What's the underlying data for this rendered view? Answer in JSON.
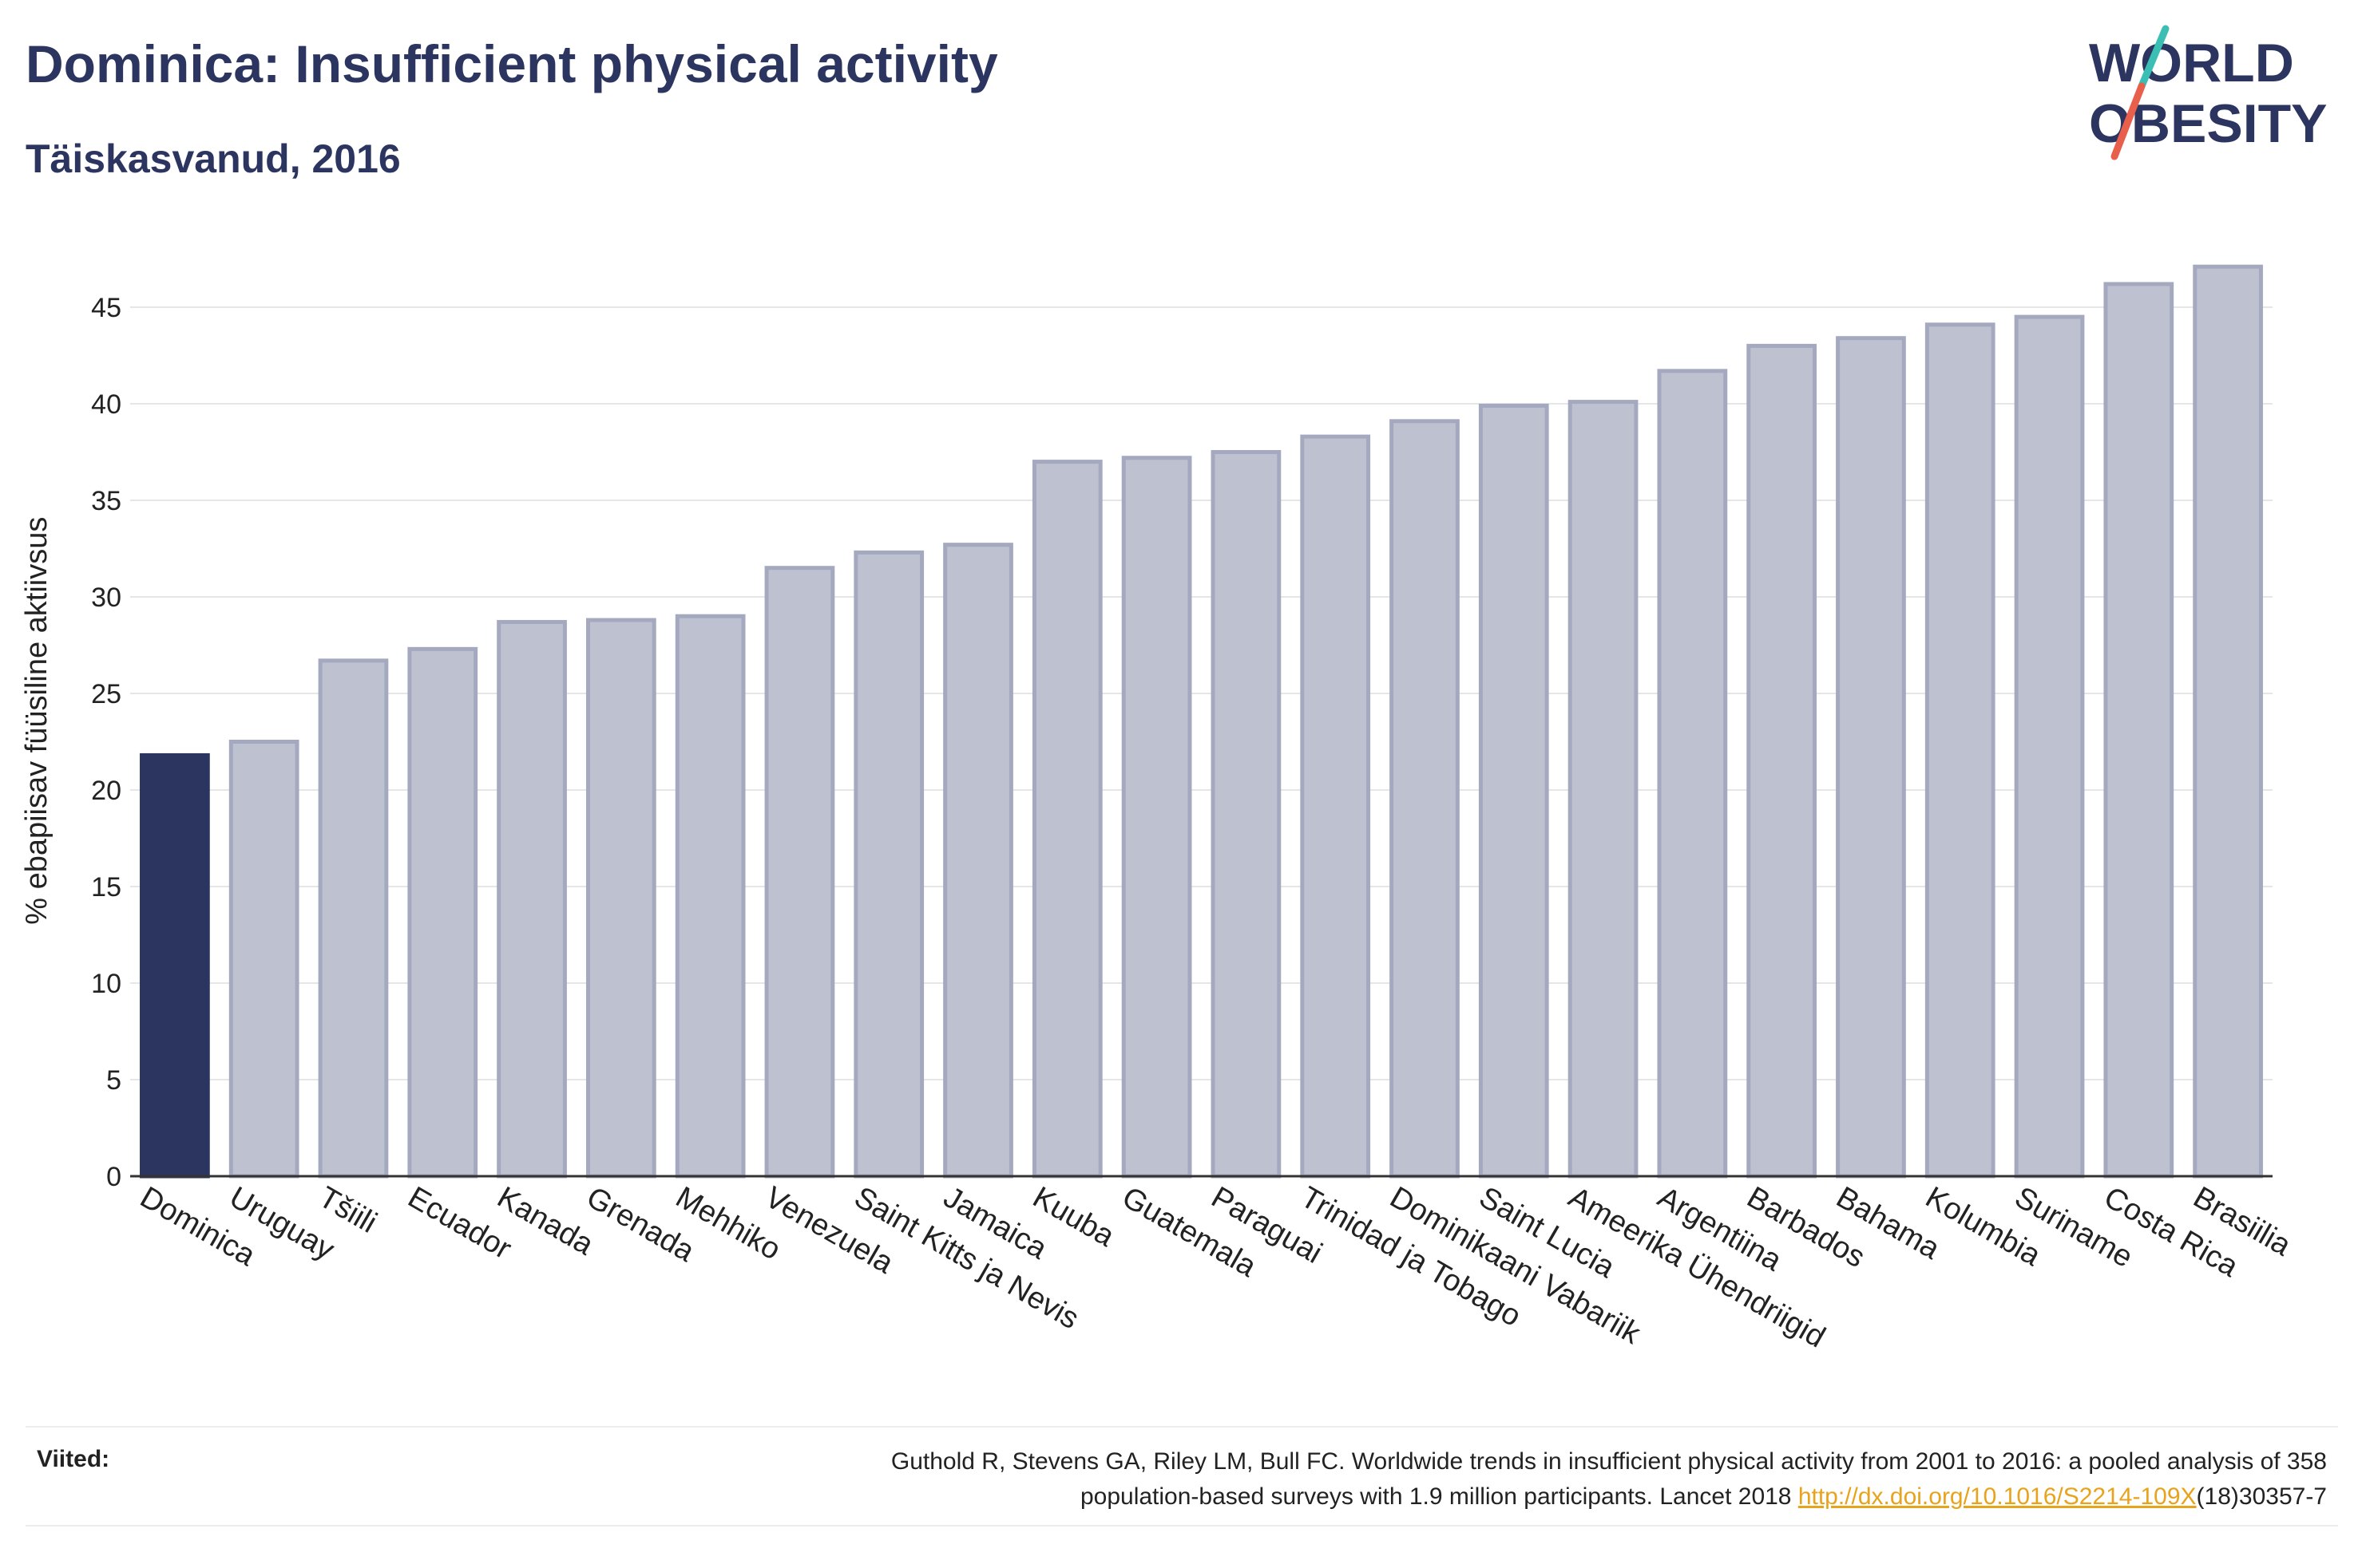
{
  "header": {
    "title": "Dominica: Insufficient physical activity",
    "subtitle": "Täiskasvanud, 2016"
  },
  "logo": {
    "line1": "WORLD",
    "line2": "OBESITY",
    "text_color": "#2b3560",
    "slash_colors": [
      "#3bbfb4",
      "#e8604c"
    ]
  },
  "chart_data": {
    "type": "bar",
    "title": "Dominica: Insufficient physical activity",
    "subtitle": "Täiskasvanud, 2016",
    "xlabel": "",
    "ylabel": "% ebapiisav füüsiline aktiivsus",
    "ylim": [
      0,
      48
    ],
    "yticks": [
      0,
      5,
      10,
      15,
      20,
      25,
      30,
      35,
      40,
      45
    ],
    "grid": true,
    "highlight_category": "Dominica",
    "colors": {
      "highlight": "#2b3560",
      "bar_fill": "#bec1cf",
      "bar_stroke": "#a4a9bf"
    },
    "categories": [
      "Dominica",
      "Uruguay",
      "Tšiili",
      "Ecuador",
      "Kanada",
      "Grenada",
      "Mehhiko",
      "Venezuela",
      "Saint Kitts ja Nevis",
      "Jamaica",
      "Kuuba",
      "Guatemala",
      "Paraguai",
      "Trinidad ja Tobago",
      "Dominikaani Vabariik",
      "Saint Lucia",
      "Ameerika Ühendriigid",
      "Argentiina",
      "Barbados",
      "Bahama",
      "Kolumbia",
      "Suriname",
      "Costa Rica",
      "Brasiilia"
    ],
    "values": [
      21.8,
      22.5,
      26.7,
      27.3,
      28.7,
      28.8,
      29.0,
      31.5,
      32.3,
      32.7,
      37.0,
      37.2,
      37.5,
      38.3,
      39.1,
      39.9,
      40.1,
      41.7,
      43.0,
      43.4,
      44.1,
      44.5,
      46.2,
      47.1
    ]
  },
  "footer": {
    "refs_label": "Viited:",
    "ref_line1": "Guthold R, Stevens GA, Riley LM, Bull FC. Worldwide trends in insufficient physical activity from 2001 to 2016: a pooled analysis of 358",
    "ref_line2_pre": "population-based surveys with 1.9 million participants. Lancet 2018 ",
    "ref_link": "http://dx.doi.org/10.1016/S2214-109X",
    "ref_line2_post": "(18)30357-7"
  }
}
